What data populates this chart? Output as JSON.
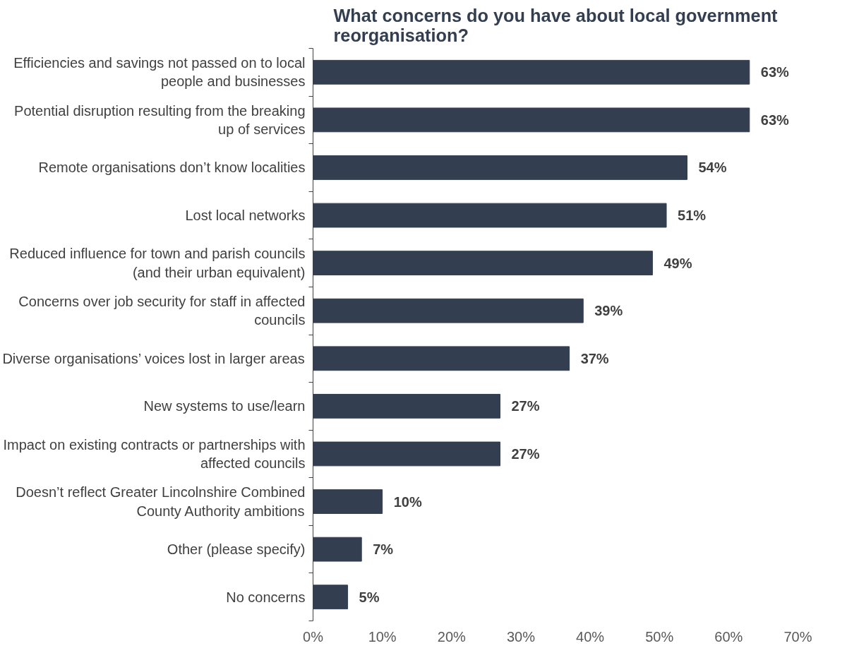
{
  "chart_data": {
    "type": "bar",
    "orientation": "horizontal",
    "title": "What concerns do you have about local government reorganisation?",
    "categories": [
      "Efficiencies and savings not passed on to local people and businesses",
      "Potential disruption resulting from the breaking up of services",
      "Remote organisations don’t know localities",
      "Lost local networks",
      "Reduced influence for town and parish councils (and their urban equivalent)",
      "Concerns over job security for staff in affected councils",
      "Diverse organisations’ voices lost in larger areas",
      "New systems to use/learn",
      "Impact on existing contracts or partnerships with affected councils",
      "Doesn’t reflect Greater Lincolnshire Combined County Authority ambitions",
      "Other (please specify)",
      "No concerns"
    ],
    "values": [
      63,
      63,
      54,
      51,
      49,
      39,
      37,
      27,
      27,
      10,
      7,
      5
    ],
    "value_labels": [
      "63%",
      "63%",
      "54%",
      "51%",
      "49%",
      "39%",
      "37%",
      "27%",
      "27%",
      "10%",
      "7%",
      "5%"
    ],
    "color": "#333f50",
    "xlim": [
      0,
      70
    ],
    "xticks": [
      {
        "value": 0,
        "label": "0%"
      },
      {
        "value": 10,
        "label": "10%"
      },
      {
        "value": 20,
        "label": "20%"
      },
      {
        "value": 30,
        "label": "30%"
      },
      {
        "value": 40,
        "label": "40%"
      },
      {
        "value": 50,
        "label": "50%"
      },
      {
        "value": 60,
        "label": "60%"
      },
      {
        "value": 70,
        "label": "70%"
      }
    ],
    "grid": false
  }
}
